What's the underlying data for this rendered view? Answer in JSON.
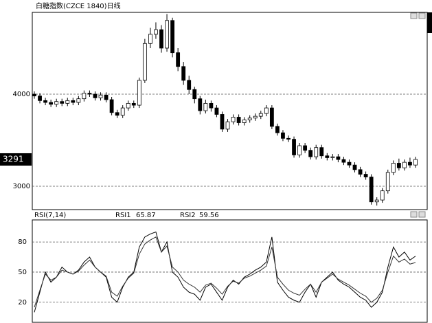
{
  "chart_data": [
    {
      "type": "candlestick",
      "title": "白糖指数(CZCE 1840)日线",
      "open": [
        4000,
        3980,
        3930,
        3910,
        3890,
        3920,
        3900,
        3930,
        3910,
        3950,
        4010,
        4000,
        3960,
        3990,
        3940,
        3800,
        3770,
        3850,
        3900,
        3880,
        4150,
        4550,
        4650,
        4700,
        4500,
        4800,
        4450,
        4300,
        4150,
        4050,
        3950,
        3820,
        3900,
        3850,
        3780,
        3620,
        3700,
        3750,
        3690,
        3720,
        3740,
        3760,
        3790,
        3850,
        3650,
        3580,
        3520,
        3510,
        3340,
        3440,
        3390,
        3320,
        3420,
        3330,
        3310,
        3320,
        3290,
        3260,
        3230,
        3180,
        3130,
        3100,
        2830,
        2850,
        2950,
        3150,
        3250,
        3200,
        3260,
        3230
      ],
      "high": [
        4030,
        4010,
        3960,
        3940,
        3950,
        3950,
        3960,
        3960,
        3980,
        4040,
        4040,
        4030,
        4020,
        4020,
        3970,
        3830,
        3880,
        3930,
        3930,
        4180,
        4600,
        4720,
        4780,
        4750,
        4870,
        4830,
        4500,
        4350,
        4200,
        4080,
        3980,
        3940,
        3930,
        3880,
        3810,
        3730,
        3780,
        3780,
        3750,
        3770,
        3790,
        3820,
        3880,
        3880,
        3680,
        3610,
        3550,
        3540,
        3470,
        3470,
        3420,
        3450,
        3450,
        3360,
        3350,
        3350,
        3320,
        3290,
        3260,
        3210,
        3160,
        3130,
        2880,
        2980,
        3180,
        3280,
        3300,
        3290,
        3310,
        3320
      ],
      "low": [
        3950,
        3900,
        3880,
        3860,
        3860,
        3870,
        3870,
        3880,
        3880,
        3920,
        3970,
        3930,
        3930,
        3910,
        3770,
        3740,
        3740,
        3820,
        3850,
        3850,
        4120,
        4500,
        4600,
        4450,
        4460,
        4400,
        4250,
        4100,
        4000,
        3900,
        3780,
        3790,
        3810,
        3750,
        3590,
        3590,
        3670,
        3660,
        3660,
        3690,
        3710,
        3730,
        3760,
        3620,
        3550,
        3490,
        3480,
        3310,
        3310,
        3360,
        3290,
        3290,
        3300,
        3280,
        3280,
        3260,
        3230,
        3200,
        3150,
        3100,
        3070,
        2800,
        2790,
        2820,
        2920,
        3120,
        3170,
        3170,
        3200,
        3200
      ],
      "close": [
        3980,
        3930,
        3910,
        3890,
        3920,
        3900,
        3930,
        3910,
        3950,
        4010,
        4000,
        3960,
        3990,
        3940,
        3800,
        3770,
        3850,
        3900,
        3880,
        4150,
        4550,
        4650,
        4700,
        4500,
        4800,
        4450,
        4300,
        4150,
        4050,
        3950,
        3820,
        3900,
        3850,
        3780,
        3620,
        3700,
        3750,
        3690,
        3720,
        3740,
        3760,
        3790,
        3850,
        3650,
        3580,
        3520,
        3510,
        3340,
        3440,
        3390,
        3320,
        3420,
        3330,
        3310,
        3320,
        3290,
        3260,
        3230,
        3180,
        3130,
        3100,
        2830,
        2850,
        2950,
        3150,
        3250,
        3200,
        3260,
        3230,
        3291
      ],
      "ylim": [
        2746,
        4888
      ],
      "yticks": [
        3000,
        4000
      ],
      "grid": true,
      "up_color": "#ffffff",
      "down_color": "#000000"
    },
    {
      "type": "line",
      "title": "RSI(7,14)",
      "series": [
        {
          "name": "RSI1",
          "color": "#000000",
          "values": [
            10,
            30,
            50,
            40,
            45,
            55,
            50,
            48,
            52,
            60,
            65,
            55,
            50,
            45,
            25,
            20,
            35,
            45,
            50,
            75,
            85,
            88,
            90,
            70,
            80,
            50,
            45,
            35,
            30,
            28,
            22,
            35,
            38,
            30,
            22,
            35,
            42,
            38,
            45,
            48,
            52,
            55,
            60,
            85,
            40,
            32,
            25,
            22,
            20,
            30,
            38,
            25,
            40,
            45,
            50,
            42,
            38,
            35,
            30,
            25,
            22,
            15,
            20,
            30,
            55,
            75,
            65,
            70,
            62,
            65.87
          ]
        },
        {
          "name": "RSI2",
          "color": "#333333",
          "values": [
            15,
            32,
            48,
            42,
            45,
            52,
            50,
            48,
            51,
            57,
            62,
            55,
            50,
            46,
            30,
            26,
            36,
            44,
            49,
            68,
            78,
            82,
            85,
            70,
            76,
            55,
            50,
            42,
            38,
            35,
            30,
            37,
            39,
            34,
            28,
            36,
            41,
            39,
            44,
            46,
            49,
            52,
            56,
            75,
            45,
            38,
            32,
            29,
            27,
            33,
            38,
            30,
            40,
            44,
            48,
            43,
            40,
            37,
            33,
            29,
            26,
            20,
            24,
            32,
            50,
            66,
            60,
            63,
            58,
            59.56
          ]
        }
      ],
      "ylim": [
        0,
        102
      ],
      "yticks": [
        20,
        50,
        80
      ],
      "grid": true
    }
  ]
}
